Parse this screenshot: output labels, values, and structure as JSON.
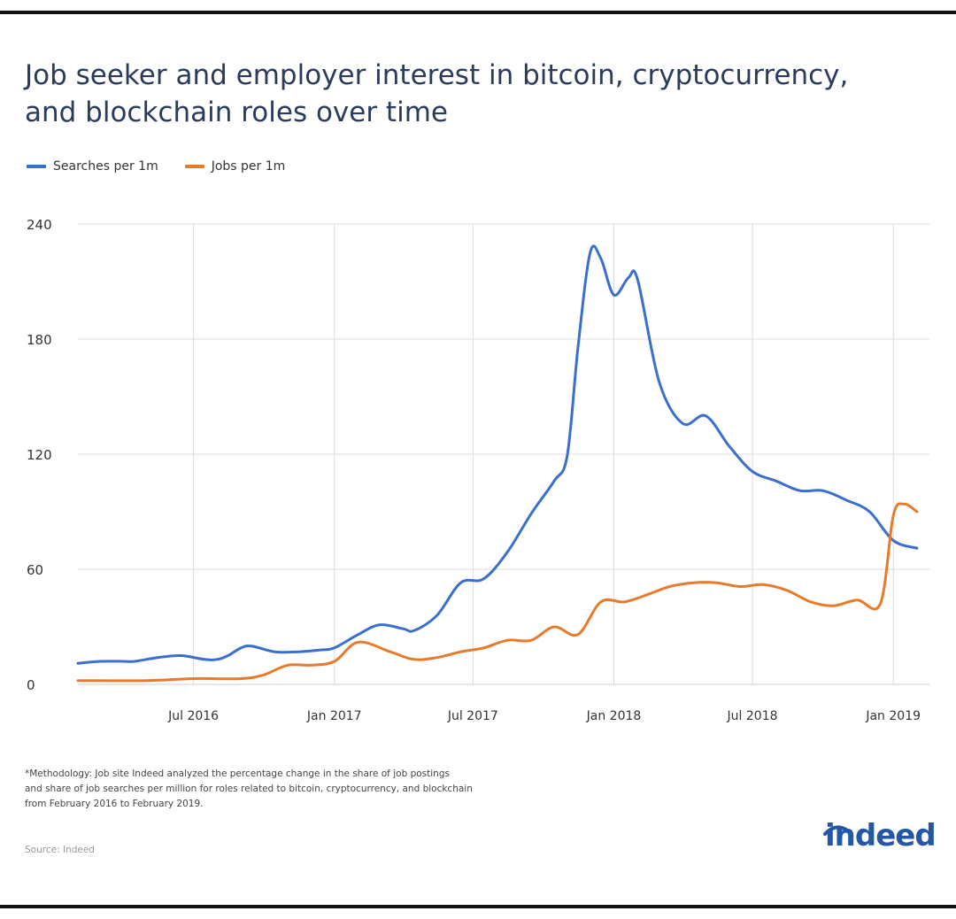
{
  "title_line1": "Job seeker and employer interest in bitcoin, cryptocurrency,",
  "title_line2": "and blockchain roles over time",
  "methodology": [
    "*Methodology: Job site Indeed analyzed the percentage change in the share of job postings",
    "and share of job searches per million for roles related to bitcoin, cryptocurrency, and blockchain",
    "from February 2016 to February 2019."
  ],
  "source": "Source: Indeed",
  "logo_text": "indeed",
  "colors": {
    "searches": "#3a6fcd",
    "jobs": "#e87a2c",
    "grid": "#dcdcdc",
    "title": "#2b3b5c",
    "logo": "#2557a7"
  },
  "chart_data": {
    "type": "line",
    "x_unit": "months since Feb 2016",
    "xlim": [
      "2016-02",
      "2019-02"
    ],
    "ylim": [
      0,
      240
    ],
    "yticks": [
      0,
      60,
      120,
      180,
      240
    ],
    "xticks": [
      {
        "label": "Jul 2016",
        "date": "2016-07"
      },
      {
        "label": "Jan 2017",
        "date": "2017-01"
      },
      {
        "label": "Jul 2017",
        "date": "2017-07"
      },
      {
        "label": "Jan 2018",
        "date": "2018-01"
      },
      {
        "label": "Jul 2018",
        "date": "2018-07"
      },
      {
        "label": "Jan 2019",
        "date": "2019-01"
      }
    ],
    "grid": true,
    "legend": "top-left",
    "series": [
      {
        "name": "Searches per 1m",
        "points": [
          [
            "2016-02-01",
            11
          ],
          [
            "2016-03-01",
            12
          ],
          [
            "2016-04-01",
            12
          ],
          [
            "2016-04-15",
            12
          ],
          [
            "2016-05-15",
            14
          ],
          [
            "2016-06-15",
            15
          ],
          [
            "2016-07-15",
            13
          ],
          [
            "2016-08-01",
            13
          ],
          [
            "2016-08-15",
            15
          ],
          [
            "2016-09-01",
            19
          ],
          [
            "2016-09-15",
            20
          ],
          [
            "2016-10-15",
            17
          ],
          [
            "2016-11-15",
            17
          ],
          [
            "2016-12-15",
            18
          ],
          [
            "2017-01-01",
            19
          ],
          [
            "2017-02-01",
            26
          ],
          [
            "2017-03-01",
            31
          ],
          [
            "2017-04-01",
            29
          ],
          [
            "2017-04-15",
            28
          ],
          [
            "2017-05-15",
            36
          ],
          [
            "2017-06-15",
            53
          ],
          [
            "2017-07-15",
            55
          ],
          [
            "2017-08-15",
            69
          ],
          [
            "2017-09-15",
            89
          ],
          [
            "2017-10-15",
            106
          ],
          [
            "2017-11-01",
            119
          ],
          [
            "2017-11-15",
            175
          ],
          [
            "2017-12-01",
            225
          ],
          [
            "2017-12-15",
            222
          ],
          [
            "2018-01-01",
            203
          ],
          [
            "2018-01-20",
            212
          ],
          [
            "2018-02-01",
            211
          ],
          [
            "2018-03-01",
            158
          ],
          [
            "2018-04-01",
            136
          ],
          [
            "2018-05-01",
            140
          ],
          [
            "2018-06-01",
            124
          ],
          [
            "2018-07-01",
            111
          ],
          [
            "2018-08-01",
            106
          ],
          [
            "2018-09-01",
            101
          ],
          [
            "2018-10-01",
            101
          ],
          [
            "2018-11-01",
            96
          ],
          [
            "2018-12-01",
            90
          ],
          [
            "2019-01-01",
            75
          ],
          [
            "2019-02-01",
            71
          ]
        ]
      },
      {
        "name": "Jobs per 1m",
        "points": [
          [
            "2016-02-01",
            2
          ],
          [
            "2016-05-01",
            2
          ],
          [
            "2016-07-01",
            3
          ],
          [
            "2016-09-01",
            3
          ],
          [
            "2016-10-01",
            5
          ],
          [
            "2016-11-01",
            10
          ],
          [
            "2016-12-01",
            10
          ],
          [
            "2017-01-01",
            12
          ],
          [
            "2017-02-01",
            22
          ],
          [
            "2017-03-15",
            17
          ],
          [
            "2017-04-15",
            13
          ],
          [
            "2017-05-15",
            14
          ],
          [
            "2017-06-15",
            17
          ],
          [
            "2017-07-15",
            19
          ],
          [
            "2017-08-15",
            23
          ],
          [
            "2017-09-15",
            23
          ],
          [
            "2017-10-15",
            30
          ],
          [
            "2017-11-15",
            26
          ],
          [
            "2017-12-15",
            43
          ],
          [
            "2018-01-15",
            43
          ],
          [
            "2018-02-15",
            47
          ],
          [
            "2018-03-15",
            51
          ],
          [
            "2018-04-15",
            53
          ],
          [
            "2018-05-15",
            53
          ],
          [
            "2018-06-15",
            51
          ],
          [
            "2018-07-15",
            52
          ],
          [
            "2018-08-15",
            49
          ],
          [
            "2018-09-15",
            43
          ],
          [
            "2018-10-15",
            41
          ],
          [
            "2018-11-15",
            44
          ],
          [
            "2018-12-15",
            42
          ],
          [
            "2019-01-01",
            88
          ],
          [
            "2019-01-15",
            94
          ],
          [
            "2019-02-01",
            90
          ]
        ]
      }
    ]
  }
}
